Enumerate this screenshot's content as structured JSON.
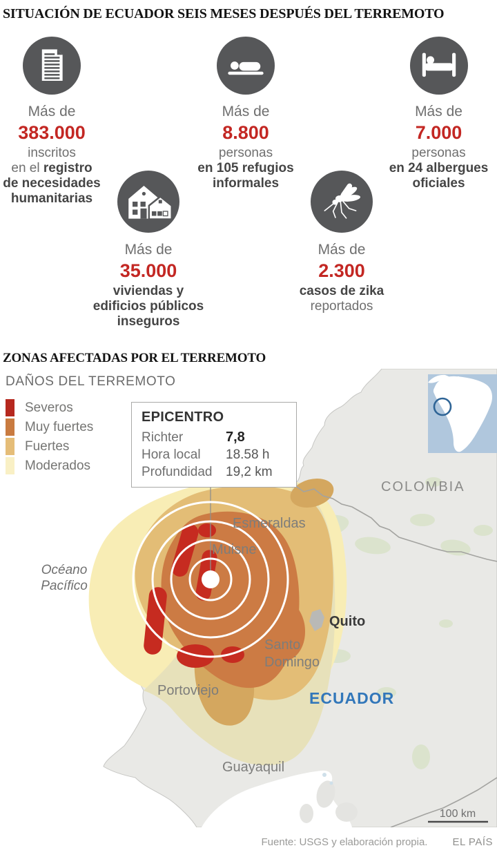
{
  "header": {
    "title": "SITUACIÓN DE ECUADOR SEIS MESES DESPUÉS DEL TERREMOTO"
  },
  "stats": [
    {
      "icon": "document-icon",
      "prefix": "Más de",
      "value": "383.000",
      "lines": [
        {
          "t": "inscritos",
          "b": false
        },
        {
          "pre": "en el ",
          "t": "registro",
          "b": true
        },
        {
          "t": "de necesidades",
          "b": true
        },
        {
          "t": "humanitarias",
          "b": true
        }
      ]
    },
    {
      "icon": "sleeping-person-icon",
      "prefix": "Más de",
      "value": "8.800",
      "lines": [
        {
          "t": "personas",
          "b": false
        },
        {
          "t": "en 105 refugios",
          "b": true
        },
        {
          "t": "informales",
          "b": true
        }
      ]
    },
    {
      "icon": "bed-icon",
      "prefix": "Más de",
      "value": "7.000",
      "lines": [
        {
          "t": "personas",
          "b": false
        },
        {
          "t": "en 24 albergues",
          "b": true
        },
        {
          "t": "oficiales",
          "b": true
        }
      ]
    },
    {
      "icon": "houses-icon",
      "prefix": "Más de",
      "value": "35.000",
      "lines": [
        {
          "t": "viviendas y",
          "b": true
        },
        {
          "t": "edificios públicos",
          "b": true
        },
        {
          "t": "inseguros",
          "b": true
        }
      ]
    },
    {
      "icon": "mosquito-icon",
      "prefix": "Más de",
      "value": "2.300",
      "lines": [
        {
          "t": "casos de zika",
          "b": true
        },
        {
          "t": "reportados",
          "b": false
        }
      ]
    }
  ],
  "section2": {
    "title": "ZONAS AFECTADAS POR EL TERREMOTO"
  },
  "map": {
    "legend": {
      "title": "DAÑOS DEL TERREMOTO",
      "items": [
        {
          "label": "Severos",
          "color": "#b6281e"
        },
        {
          "label": "Muy fuertes",
          "color": "#c97b40"
        },
        {
          "label": "Fuertes",
          "color": "#e5bd78"
        },
        {
          "label": "Moderados",
          "color": "#f9f0c5"
        }
      ]
    },
    "epicentro": {
      "title": "EPICENTRO",
      "rows": [
        {
          "label": "Richter",
          "value": "7,8",
          "bold": true
        },
        {
          "label": "Hora local",
          "value": "18.58 h",
          "bold": false
        },
        {
          "label": "Profundidad",
          "value": "19,2 km",
          "bold": false
        }
      ]
    },
    "labels": {
      "colombia": "COLOMBIA",
      "ecuador": "ECUADOR",
      "esmeraldas": "Esmeraldas",
      "muisne": "Muisne",
      "quito": "Quito",
      "santo_domingo": "Santo Domingo",
      "portoviejo": "Portoviejo",
      "guayaquil": "Guayaquil",
      "ocean": "Océano Pacífico",
      "scale": "100 km"
    },
    "colors": {
      "severe": "#c62b20",
      "very_strong": "#cc7b44",
      "strong": "#e3bd76",
      "moderate": "#f8edb5",
      "accent_red": "#c32723",
      "ecuador_label_blue": "#3277ba"
    }
  },
  "footer": {
    "source": "Fuente: USGS y elaboración propia.",
    "brand": "EL PAÍS"
  }
}
